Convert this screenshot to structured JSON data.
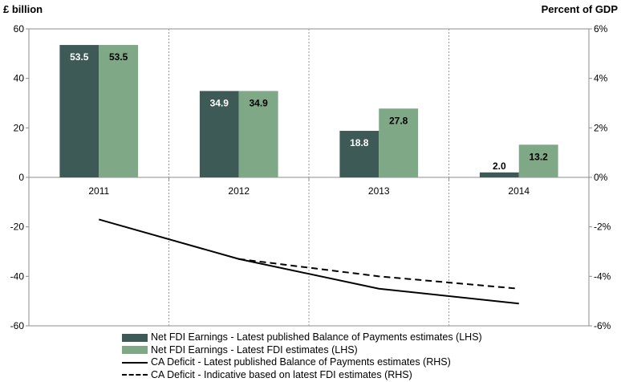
{
  "header": {
    "left_unit": "£ billion",
    "right_unit": "Percent of GDP"
  },
  "chart_data": {
    "type": "bar",
    "categories": [
      "2011",
      "2012",
      "2013",
      "2014"
    ],
    "ylim_left": [
      -60,
      60
    ],
    "yticks_left": [
      "-60",
      "-40",
      "-20",
      "0",
      "20",
      "40",
      "60"
    ],
    "ylim_right": [
      -6,
      6
    ],
    "yticks_right": [
      "-6%",
      "-4%",
      "-2%",
      "0%",
      "2%",
      "4%",
      "6%"
    ],
    "grid": "vertical dashed",
    "legend_position": "bottom",
    "series": [
      {
        "name": "Net FDI Earnings - Latest published Balance of Payments estimates (LHS)",
        "type": "bar",
        "axis": "left",
        "color": "#3e5a56",
        "values": [
          53.5,
          34.9,
          18.8,
          2.0
        ],
        "labels": [
          "53.5",
          "34.9",
          "18.8",
          "2.0"
        ]
      },
      {
        "name": "Net FDI Earnings - Latest FDI estimates (LHS)",
        "type": "bar",
        "axis": "left",
        "color": "#7ea886",
        "values": [
          53.5,
          34.9,
          27.8,
          13.2
        ],
        "labels": [
          "53.5",
          "34.9",
          "27.8",
          "13.2"
        ]
      },
      {
        "name": "CA Deficit - Latest published Balance of Payments estimates (RHS)",
        "type": "line",
        "axis": "right",
        "style": "solid",
        "color": "#000000",
        "values": [
          -1.7,
          -3.3,
          -4.5,
          -5.1
        ]
      },
      {
        "name": "CA Deficit - Indicative based on latest FDI estimates (RHS)",
        "type": "line",
        "axis": "right",
        "style": "dashed",
        "color": "#000000",
        "values": [
          null,
          -3.3,
          -4.0,
          -4.5
        ]
      }
    ]
  }
}
